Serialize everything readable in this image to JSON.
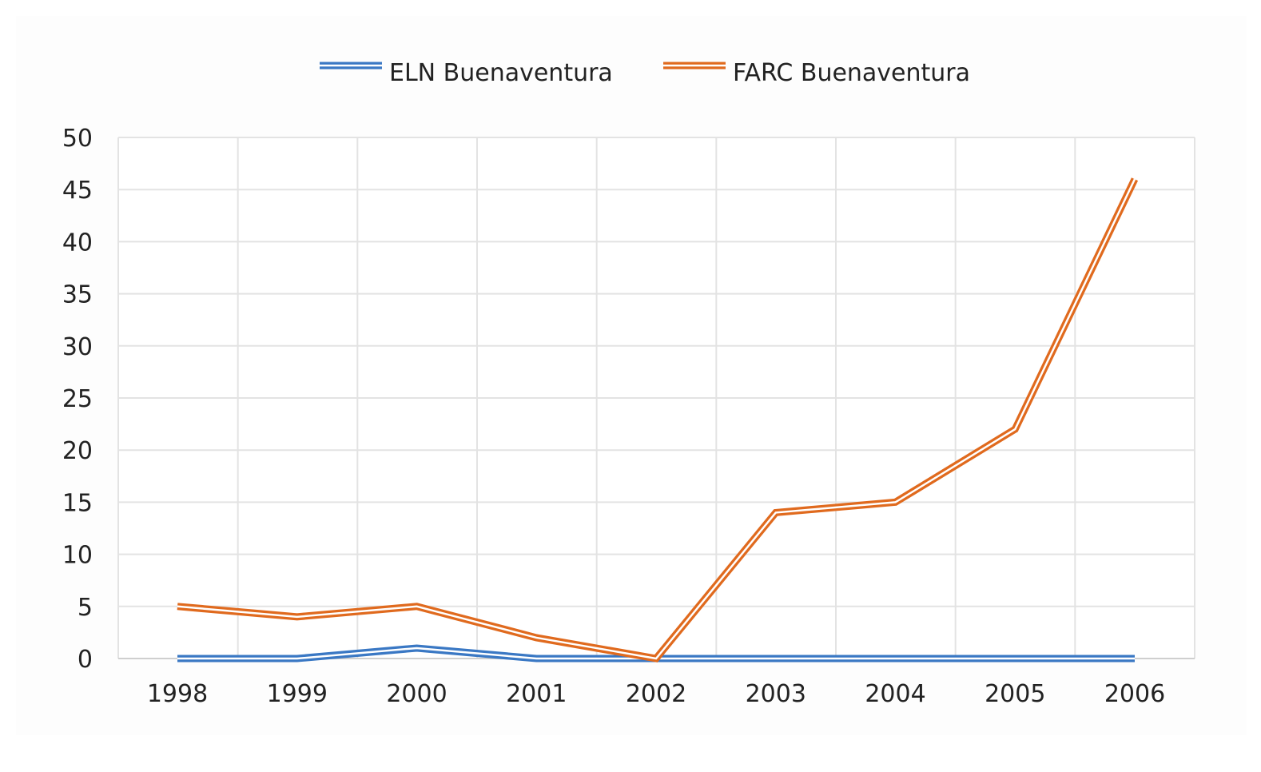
{
  "chart_data": {
    "type": "line",
    "title": "",
    "xlabel": "",
    "ylabel": "",
    "categories": [
      "1998",
      "1999",
      "2000",
      "2001",
      "2002",
      "2003",
      "2004",
      "2005",
      "2006"
    ],
    "ylim": [
      0,
      50
    ],
    "yticks": [
      0,
      5,
      10,
      15,
      20,
      25,
      30,
      35,
      40,
      45,
      50
    ],
    "grid": true,
    "legend_position": "top-center",
    "series": [
      {
        "name": "ELN Buenaventura",
        "color": "#3a78c4",
        "values": [
          0,
          0,
          1,
          0,
          0,
          0,
          0,
          0,
          0
        ]
      },
      {
        "name": "FARC Buenaventura",
        "color": "#e06a1e",
        "values": [
          5,
          4,
          5,
          2,
          0,
          14,
          15,
          22,
          46
        ]
      }
    ]
  }
}
